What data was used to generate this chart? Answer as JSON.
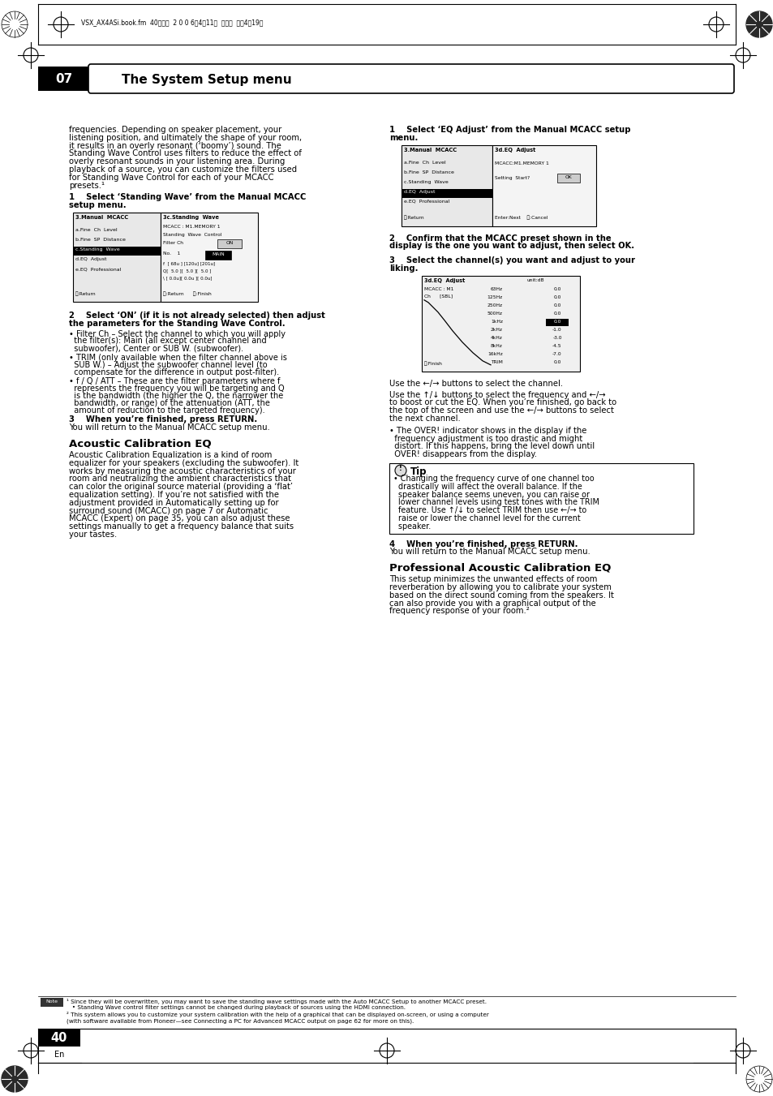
{
  "page_num": "40",
  "page_label": "En",
  "chapter_num": "07",
  "chapter_title": "The System Setup menu",
  "header_text": "VSX_AX4ASi.book.fm  40ページ  2 0 0 6年4月11日  火曜日  午後4時19分",
  "bg_color": "#ffffff"
}
